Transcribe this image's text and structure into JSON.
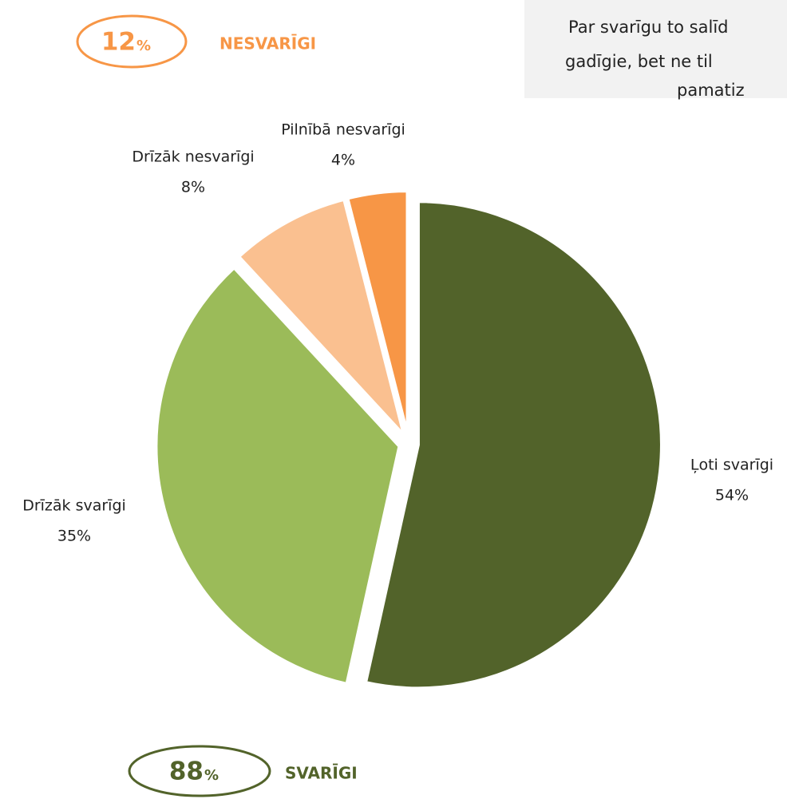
{
  "chart_data": {
    "type": "pie",
    "categories": [
      "Ļoti svarīgi",
      "Drīzāk svarīgi",
      "Drīzāk nesvarīgi",
      "Pilnībā nesvarīgi"
    ],
    "values": [
      54,
      35,
      8,
      4
    ],
    "value_labels": [
      "54%",
      "35%",
      "8%",
      "4%"
    ],
    "colors": [
      "#52632a",
      "#9bbb59",
      "#fac090",
      "#f79646"
    ],
    "callouts": [
      {
        "value": "12",
        "unit": "%",
        "label": "NESVARĪGI",
        "color": "#f79646"
      },
      {
        "value": "88",
        "unit": "%",
        "label": "SVARĪGI",
        "color": "#52632a"
      }
    ],
    "note": [
      "Par svarīgu to salīd",
      "gadīgie, bet ne til",
      "pamatiz"
    ]
  }
}
